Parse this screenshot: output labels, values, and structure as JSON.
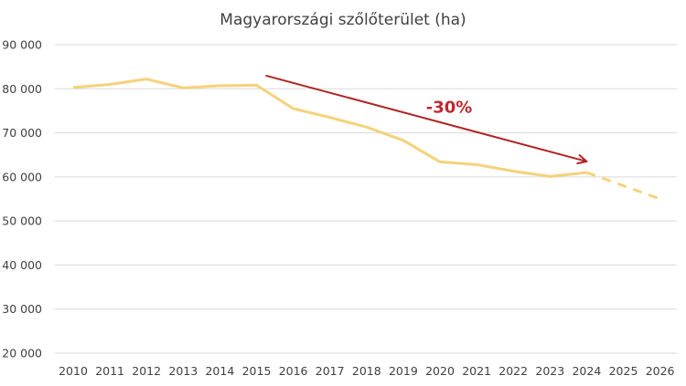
{
  "chart_data": {
    "type": "line",
    "title": "Magyarországi szőlőterület (ha)",
    "xlabel": "",
    "ylabel": "",
    "ylim": [
      20000,
      90000
    ],
    "y_ticks": [
      20000,
      30000,
      40000,
      50000,
      60000,
      70000,
      80000,
      90000
    ],
    "y_tick_labels": [
      "20 000",
      "30 000",
      "40 000",
      "50 000",
      "60 000",
      "70 000",
      "80 000",
      "90 000"
    ],
    "categories": [
      "2010",
      "2011",
      "2012",
      "2013",
      "2014",
      "2015",
      "2016",
      "2017",
      "2018",
      "2019",
      "2020",
      "2021",
      "2022",
      "2023",
      "2024",
      "2025",
      "2026"
    ],
    "series": [
      {
        "color": "#f5d27a",
        "values": [
          80300,
          81000,
          82200,
          80200,
          80700,
          80800,
          75500,
          73500,
          71300,
          68300,
          63400,
          62800,
          61300,
          60100,
          61000,
          null,
          null
        ],
        "style": "solid"
      },
      {
        "color": "#f5d27a",
        "values": [
          null,
          null,
          null,
          null,
          null,
          null,
          null,
          null,
          null,
          null,
          null,
          null,
          null,
          null,
          61000,
          58000,
          55000
        ],
        "style": "dashed",
        "note": "forecast"
      }
    ],
    "grid": true,
    "legend": "none",
    "annotations": [
      {
        "type": "arrow",
        "color": "#b22222",
        "from": {
          "x": "2015",
          "y": 83000
        },
        "to": {
          "x": "2024",
          "y": 63500
        }
      },
      {
        "type": "text",
        "text": "-30%",
        "color": "#c0272d",
        "at": {
          "x": "2020",
          "y": 75000
        }
      }
    ]
  }
}
